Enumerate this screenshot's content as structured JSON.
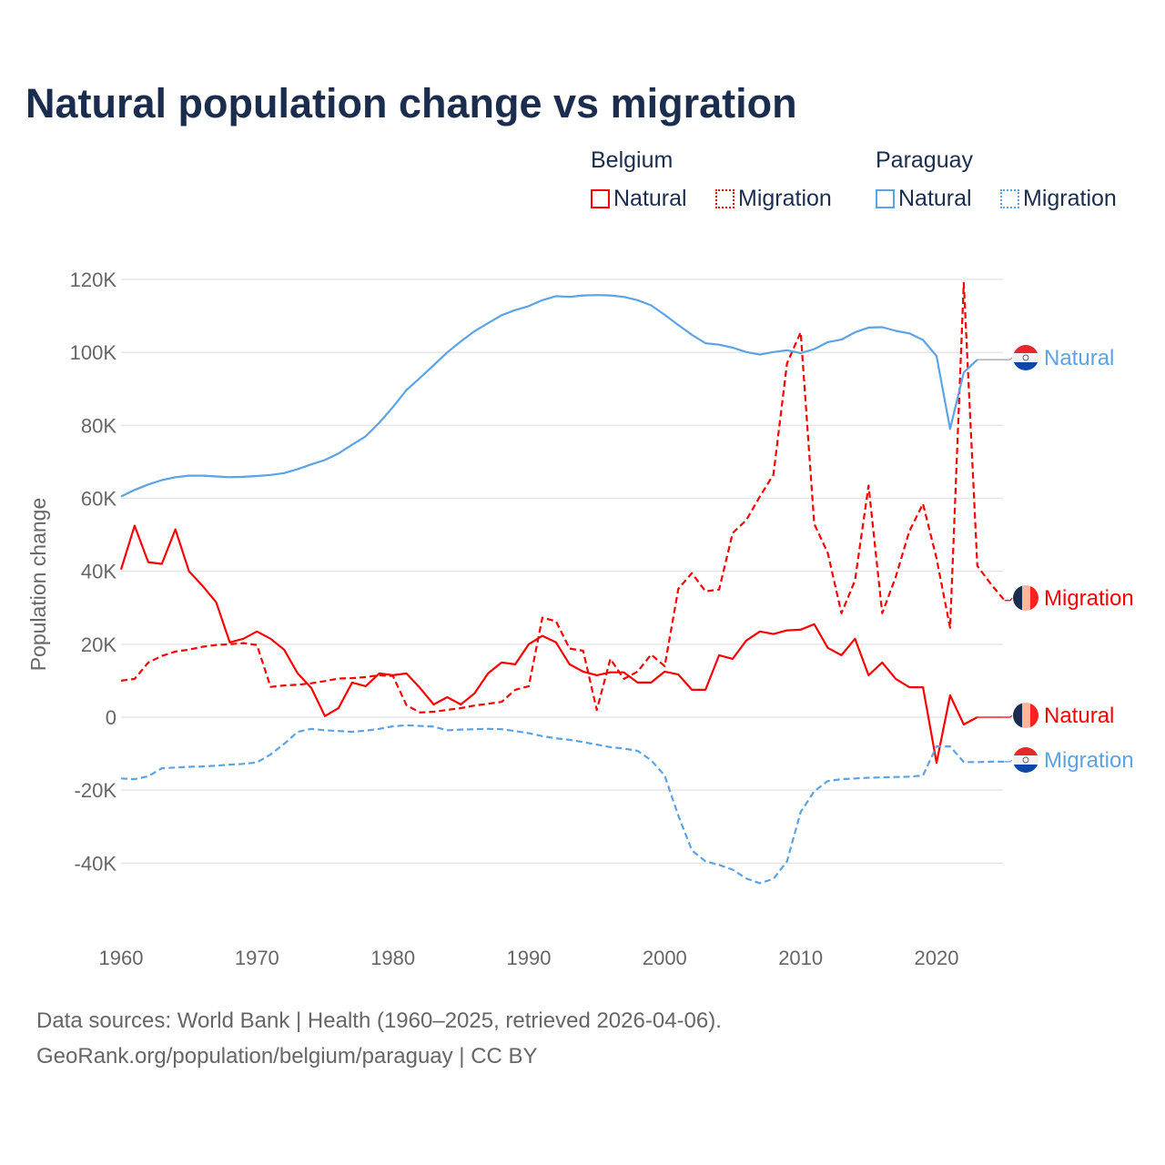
{
  "title": "Natural population change vs migration",
  "legend": {
    "groups": [
      {
        "country": "Belgium",
        "items": [
          "Natural",
          "Migration"
        ],
        "color": "#ff0000"
      },
      {
        "country": "Paraguay",
        "items": [
          "Natural",
          "Migration"
        ],
        "color": "#5ba3e6"
      }
    ]
  },
  "footer": {
    "line1": "Data sources: World Bank | Health (1960–2025, retrieved 2026-04-06).",
    "line2": "GeoRank.org/population/belgium/paraguay | CC BY"
  },
  "chart_data": {
    "type": "line",
    "title": "Natural population change vs migration",
    "xlabel": "",
    "ylabel": "Population change",
    "xlim": [
      1960,
      2025
    ],
    "ylim": [
      -60000,
      120000
    ],
    "x_ticks": [
      "1960",
      "1970",
      "1980",
      "1990",
      "2000",
      "2010",
      "2020"
    ],
    "y_ticks": [
      {
        "v": 120000,
        "label": "120K"
      },
      {
        "v": 100000,
        "label": "100K"
      },
      {
        "v": 80000,
        "label": "80K"
      },
      {
        "v": 60000,
        "label": "60K"
      },
      {
        "v": 40000,
        "label": "40K"
      },
      {
        "v": 20000,
        "label": "20K"
      },
      {
        "v": 0,
        "label": "0"
      },
      {
        "v": -20000,
        "label": "-20K"
      },
      {
        "v": -40000,
        "label": "-40K"
      }
    ],
    "grid": true,
    "legend_position": "top-right",
    "x_start": 1960,
    "series": [
      {
        "name": "Belgium Natural",
        "label": "Natural",
        "country": "Belgium",
        "color": "#ff0000",
        "dash": false,
        "values": [
          40500,
          52500,
          42500,
          42000,
          51500,
          40000,
          36000,
          31500,
          20500,
          21500,
          23500,
          21500,
          18500,
          12000,
          8000,
          300,
          2500,
          9500,
          8500,
          12000,
          11500,
          12000,
          8000,
          3500,
          5500,
          3500,
          6500,
          12000,
          15000,
          14500,
          20000,
          22300,
          20500,
          14500,
          12500,
          11500,
          12300,
          12300,
          9500,
          9500,
          12500,
          11700,
          7500,
          7500,
          17000,
          16000,
          21000,
          23500,
          22800,
          23800,
          24000,
          25500,
          19000,
          17000,
          21500,
          11500,
          15000,
          10500,
          8200,
          8200,
          -12500,
          6000,
          -2000,
          0,
          null,
          null
        ]
      },
      {
        "name": "Belgium Migration",
        "label": "Migration",
        "country": "Belgium",
        "color": "#ff0000",
        "dash": true,
        "values": [
          10000,
          10500,
          15000,
          16800,
          18000,
          18500,
          19300,
          19800,
          20000,
          20300,
          19800,
          8300,
          8700,
          8900,
          9300,
          9900,
          10600,
          10700,
          11000,
          11500,
          11300,
          3300,
          1300,
          1500,
          2000,
          2500,
          3200,
          3700,
          4200,
          7500,
          8500,
          27300,
          26300,
          18800,
          18200,
          2000,
          16000,
          10500,
          12500,
          17200,
          14000,
          35200,
          39500,
          34500,
          35000,
          50500,
          54000,
          60500,
          66500,
          97000,
          105500,
          53000,
          45000,
          28500,
          37500,
          63500,
          28500,
          38500,
          51000,
          58500,
          43500,
          24500,
          119000,
          41500,
          36500,
          32000
        ]
      },
      {
        "name": "Paraguay Natural",
        "label": "Natural",
        "country": "Paraguay",
        "color": "#5ba3e6",
        "dash": false,
        "values": [
          60500,
          62300,
          63800,
          65000,
          65800,
          66200,
          66200,
          66000,
          65800,
          65900,
          66100,
          66400,
          66900,
          68000,
          69300,
          70500,
          72300,
          74700,
          77000,
          80700,
          85000,
          89700,
          93000,
          96500,
          100000,
          103000,
          105800,
          108000,
          110200,
          111600,
          112700,
          114300,
          115400,
          115200,
          115600,
          115700,
          115600,
          115200,
          114300,
          112900,
          110300,
          107500,
          104800,
          102500,
          102100,
          101300,
          100100,
          99400,
          100100,
          100600,
          99800,
          100900,
          102800,
          103500,
          105500,
          106800,
          106900,
          105900,
          105200,
          103400,
          99000,
          79000,
          94500,
          98000,
          null,
          null
        ]
      },
      {
        "name": "Paraguay Migration",
        "label": "Migration",
        "country": "Paraguay",
        "color": "#5ba3e6",
        "dash": true,
        "values": [
          -16800,
          -17000,
          -16200,
          -14000,
          -13800,
          -13600,
          -13500,
          -13300,
          -13000,
          -12800,
          -12400,
          -10200,
          -7300,
          -4000,
          -3200,
          -3600,
          -3800,
          -4000,
          -3700,
          -3200,
          -2500,
          -2200,
          -2400,
          -2600,
          -3600,
          -3400,
          -3300,
          -3200,
          -3300,
          -3800,
          -4400,
          -5200,
          -5800,
          -6200,
          -6800,
          -7500,
          -8200,
          -8600,
          -9200,
          -11800,
          -16000,
          -27000,
          -36500,
          -39500,
          -40500,
          -41800,
          -44200,
          -45500,
          -44300,
          -39500,
          -26000,
          -20300,
          -17500,
          -17000,
          -16800,
          -16600,
          -16500,
          -16400,
          -16300,
          -16000,
          -8000,
          -8000,
          -12300,
          -12300,
          -12200,
          -12200
        ]
      }
    ]
  }
}
